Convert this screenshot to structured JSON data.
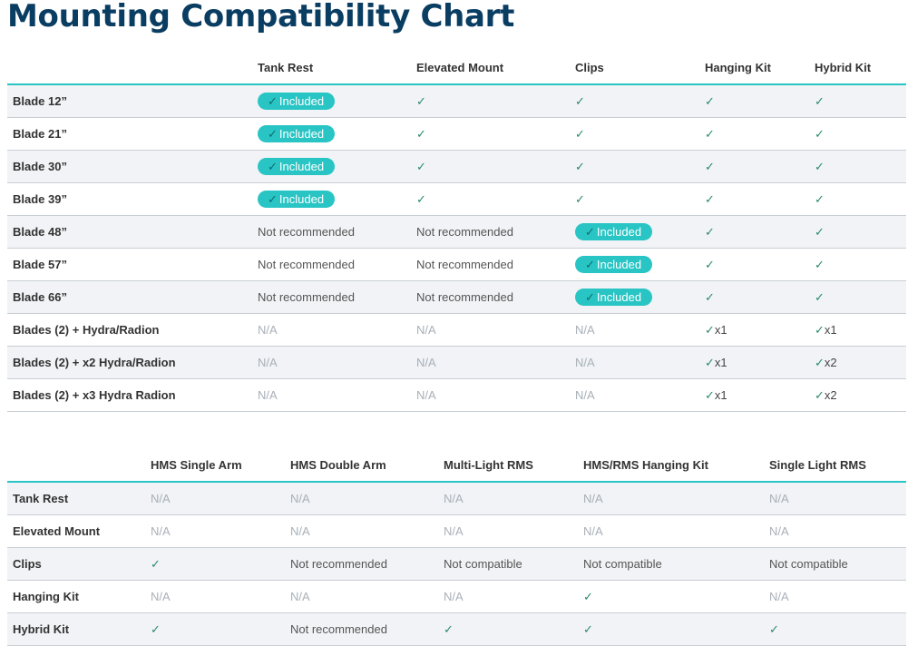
{
  "title": "Mounting Compatibility Chart",
  "table1": {
    "headers": [
      "",
      "Tank Rest",
      "Elevated Mount",
      "Clips",
      "Hanging Kit",
      "Hybrid Kit"
    ],
    "rows": [
      {
        "label": "Blade 12”",
        "cells": [
          {
            "type": "badge",
            "text": "Included"
          },
          {
            "type": "check",
            "text": "✓"
          },
          {
            "type": "check",
            "text": "✓"
          },
          {
            "type": "check",
            "text": "✓"
          },
          {
            "type": "check",
            "text": "✓"
          }
        ]
      },
      {
        "label": "Blade 21”",
        "cells": [
          {
            "type": "badge",
            "text": "Included"
          },
          {
            "type": "check",
            "text": "✓"
          },
          {
            "type": "check",
            "text": "✓"
          },
          {
            "type": "check",
            "text": "✓"
          },
          {
            "type": "check",
            "text": "✓"
          }
        ]
      },
      {
        "label": "Blade 30”",
        "cells": [
          {
            "type": "badge",
            "text": "Included"
          },
          {
            "type": "check",
            "text": "✓"
          },
          {
            "type": "check",
            "text": "✓"
          },
          {
            "type": "check",
            "text": "✓"
          },
          {
            "type": "check",
            "text": "✓"
          }
        ]
      },
      {
        "label": "Blade 39”",
        "cells": [
          {
            "type": "badge",
            "text": "Included"
          },
          {
            "type": "check",
            "text": "✓"
          },
          {
            "type": "check",
            "text": "✓"
          },
          {
            "type": "check",
            "text": "✓"
          },
          {
            "type": "check",
            "text": "✓"
          }
        ]
      },
      {
        "label": "Blade 48”",
        "cells": [
          {
            "type": "text",
            "text": "Not recommended"
          },
          {
            "type": "text",
            "text": "Not recommended"
          },
          {
            "type": "badge",
            "text": "Included"
          },
          {
            "type": "check",
            "text": "✓"
          },
          {
            "type": "check",
            "text": "✓"
          }
        ]
      },
      {
        "label": "Blade 57”",
        "cells": [
          {
            "type": "text",
            "text": "Not recommended"
          },
          {
            "type": "text",
            "text": "Not recommended"
          },
          {
            "type": "badge",
            "text": "Included"
          },
          {
            "type": "check",
            "text": "✓"
          },
          {
            "type": "check",
            "text": "✓"
          }
        ]
      },
      {
        "label": "Blade 66”",
        "cells": [
          {
            "type": "text",
            "text": "Not recommended"
          },
          {
            "type": "text",
            "text": "Not recommended"
          },
          {
            "type": "badge",
            "text": "Included"
          },
          {
            "type": "check",
            "text": "✓"
          },
          {
            "type": "check",
            "text": "✓"
          }
        ]
      },
      {
        "label": "Blades (2) + Hydra/Radion",
        "cells": [
          {
            "type": "na",
            "text": "N/A"
          },
          {
            "type": "na",
            "text": "N/A"
          },
          {
            "type": "na",
            "text": "N/A"
          },
          {
            "type": "checkx",
            "text": "x1"
          },
          {
            "type": "checkx",
            "text": "x1"
          }
        ]
      },
      {
        "label": "Blades (2) + x2 Hydra/Radion",
        "cells": [
          {
            "type": "na",
            "text": "N/A"
          },
          {
            "type": "na",
            "text": "N/A"
          },
          {
            "type": "na",
            "text": "N/A"
          },
          {
            "type": "checkx",
            "text": "x1"
          },
          {
            "type": "checkx",
            "text": "x2"
          }
        ]
      },
      {
        "label": "Blades (2) + x3 Hydra Radion",
        "cells": [
          {
            "type": "na",
            "text": "N/A"
          },
          {
            "type": "na",
            "text": "N/A"
          },
          {
            "type": "na",
            "text": "N/A"
          },
          {
            "type": "checkx",
            "text": "x1"
          },
          {
            "type": "checkx",
            "text": "x2"
          }
        ]
      }
    ]
  },
  "table2": {
    "headers": [
      "",
      "HMS Single Arm",
      "HMS Double Arm",
      "Multi-Light RMS",
      "HMS/RMS Hanging Kit",
      "Single Light RMS"
    ],
    "rows": [
      {
        "label": "Tank Rest",
        "cells": [
          {
            "type": "na",
            "text": "N/A"
          },
          {
            "type": "na",
            "text": "N/A"
          },
          {
            "type": "na",
            "text": "N/A"
          },
          {
            "type": "na",
            "text": "N/A"
          },
          {
            "type": "na",
            "text": "N/A"
          }
        ]
      },
      {
        "label": "Elevated Mount",
        "cells": [
          {
            "type": "na",
            "text": "N/A"
          },
          {
            "type": "na",
            "text": "N/A"
          },
          {
            "type": "na",
            "text": "N/A"
          },
          {
            "type": "na",
            "text": "N/A"
          },
          {
            "type": "na",
            "text": "N/A"
          }
        ]
      },
      {
        "label": "Clips",
        "cells": [
          {
            "type": "check",
            "text": "✓"
          },
          {
            "type": "text",
            "text": "Not recommended"
          },
          {
            "type": "text",
            "text": "Not compatible"
          },
          {
            "type": "text",
            "text": "Not compatible"
          },
          {
            "type": "text",
            "text": "Not compatible"
          }
        ]
      },
      {
        "label": "Hanging Kit",
        "cells": [
          {
            "type": "na",
            "text": "N/A"
          },
          {
            "type": "na",
            "text": "N/A"
          },
          {
            "type": "na",
            "text": "N/A"
          },
          {
            "type": "check",
            "text": "✓"
          },
          {
            "type": "na",
            "text": "N/A"
          }
        ]
      },
      {
        "label": "Hybrid Kit",
        "cells": [
          {
            "type": "check",
            "text": "✓"
          },
          {
            "type": "text",
            "text": "Not recommended"
          },
          {
            "type": "check",
            "text": "✓"
          },
          {
            "type": "check",
            "text": "✓"
          },
          {
            "type": "check",
            "text": "✓"
          }
        ]
      }
    ]
  },
  "colors": {
    "title": "#0a3d62",
    "accent": "#29c4c4",
    "check": "#2a8a6e",
    "na": "#a8b0b8",
    "row_stripe": "#f1f3f6"
  },
  "icons": {
    "check": "check-icon"
  }
}
